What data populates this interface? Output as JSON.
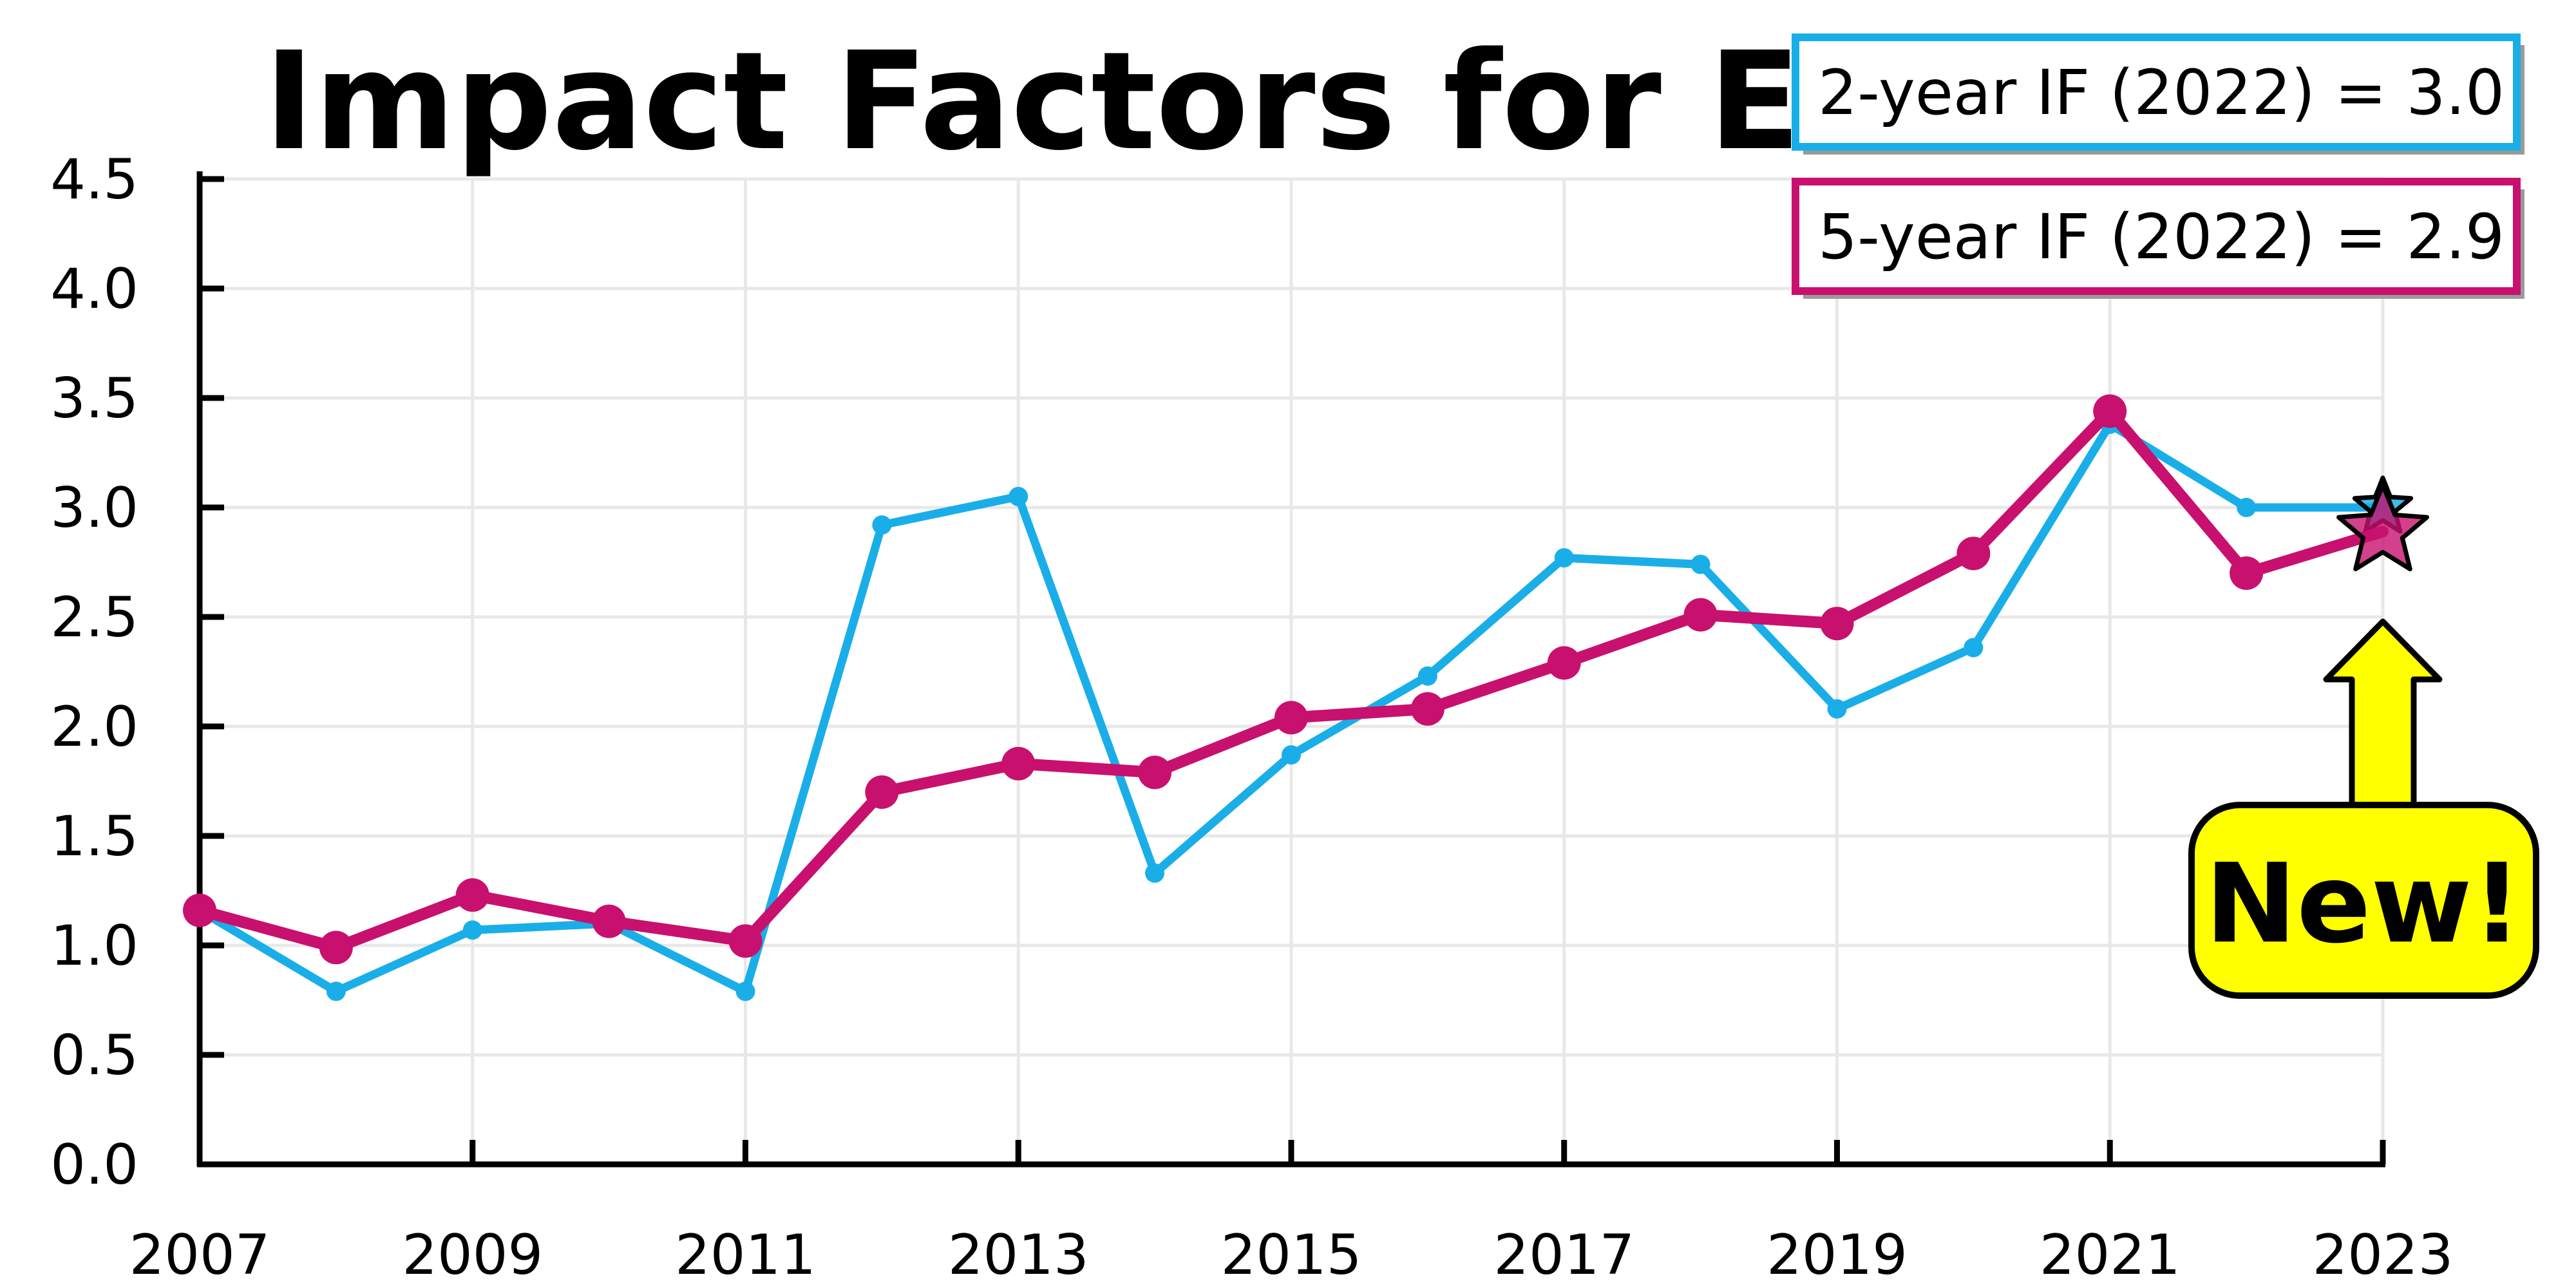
{
  "chart_data": {
    "type": "line",
    "title": "Impact Factors for EPS",
    "xlabel": "",
    "ylabel": "",
    "xlim": [
      2007,
      2023
    ],
    "ylim": [
      0,
      4.5
    ],
    "x_ticks": [
      "2007",
      "2009",
      "2011",
      "2013",
      "2015",
      "2017",
      "2019",
      "2021",
      "2023"
    ],
    "y_ticks": [
      "0.0",
      "0.5",
      "1.0",
      "1.5",
      "2.0",
      "2.5",
      "3.0",
      "3.5",
      "4.0",
      "4.5"
    ],
    "grid": true,
    "legend_position": "top-right",
    "series": [
      {
        "name": "2-year IF (2022) = 3.0",
        "color": "#1aaee8",
        "x": [
          2007,
          2008,
          2009,
          2010,
          2011,
          2012,
          2013,
          2014,
          2015,
          2016,
          2017,
          2018,
          2019,
          2020,
          2021,
          2022,
          2023
        ],
        "values": [
          1.16,
          0.79,
          1.07,
          1.1,
          0.79,
          2.92,
          3.05,
          1.33,
          1.87,
          2.23,
          2.77,
          2.74,
          2.08,
          2.36,
          3.38,
          3.0,
          3.0
        ]
      },
      {
        "name": "5-year IF (2022) = 2.9",
        "color": "#c8106e",
        "x": [
          2007,
          2008,
          2009,
          2010,
          2011,
          2012,
          2013,
          2014,
          2015,
          2016,
          2017,
          2018,
          2019,
          2020,
          2021,
          2022,
          2023
        ],
        "values": [
          1.16,
          0.99,
          1.23,
          1.11,
          1.02,
          1.7,
          1.83,
          1.79,
          2.04,
          2.08,
          2.29,
          2.51,
          2.47,
          2.79,
          3.44,
          2.7,
          2.89
        ]
      }
    ],
    "annotation": {
      "text": "New!",
      "fill": "#ffff00",
      "arrow_color": "#ffff00"
    }
  }
}
